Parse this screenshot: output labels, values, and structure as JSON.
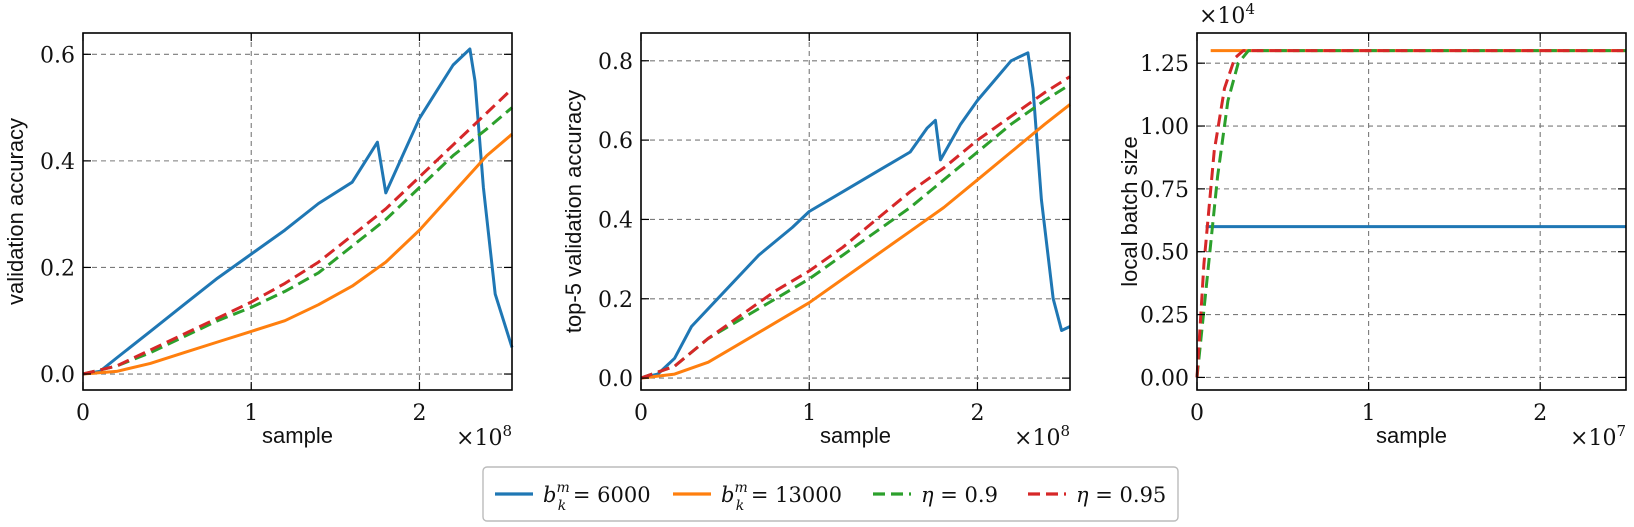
{
  "chart_data": [
    {
      "type": "line",
      "xlabel": "sample",
      "ylabel": "validation accuracy",
      "x_multiplier": "×10^8",
      "xlim": [
        0,
        2.55
      ],
      "ylim": [
        -0.03,
        0.64
      ],
      "xticks": [
        0,
        1,
        2
      ],
      "yticks": [
        0.0,
        0.2,
        0.4,
        0.6
      ],
      "ytick_labels": [
        "0.0",
        "0.2",
        "0.4",
        "0.6"
      ],
      "grid": true,
      "series": [
        {
          "name": "b_k^m = 6000",
          "color": "#1f77b4",
          "style": "solid",
          "x": [
            0,
            0.1,
            0.2,
            0.4,
            0.6,
            0.8,
            1.0,
            1.2,
            1.4,
            1.6,
            1.7,
            1.75,
            1.8,
            1.9,
            2.0,
            2.1,
            2.2,
            2.3,
            2.33,
            2.38,
            2.45,
            2.55
          ],
          "y": [
            0,
            0.005,
            0.03,
            0.08,
            0.13,
            0.18,
            0.225,
            0.27,
            0.32,
            0.36,
            0.41,
            0.435,
            0.34,
            0.41,
            0.48,
            0.53,
            0.58,
            0.61,
            0.55,
            0.35,
            0.15,
            0.05
          ]
        },
        {
          "name": "b_k^m = 13000",
          "color": "#ff7f0e",
          "style": "solid",
          "x": [
            0,
            0.2,
            0.4,
            0.6,
            0.8,
            1.0,
            1.2,
            1.4,
            1.6,
            1.8,
            2.0,
            2.2,
            2.4,
            2.55
          ],
          "y": [
            0,
            0.005,
            0.02,
            0.04,
            0.06,
            0.08,
            0.1,
            0.13,
            0.165,
            0.21,
            0.27,
            0.34,
            0.41,
            0.45
          ]
        },
        {
          "name": "η = 0.9",
          "color": "#2ca02c",
          "style": "dashed",
          "x": [
            0,
            0.2,
            0.4,
            0.6,
            0.8,
            1.0,
            1.2,
            1.4,
            1.6,
            1.8,
            2.0,
            2.2,
            2.4,
            2.55
          ],
          "y": [
            0,
            0.015,
            0.04,
            0.07,
            0.1,
            0.125,
            0.155,
            0.19,
            0.24,
            0.29,
            0.35,
            0.41,
            0.46,
            0.5
          ]
        },
        {
          "name": "η = 0.95",
          "color": "#d62728",
          "style": "dashed",
          "x": [
            0,
            0.2,
            0.4,
            0.6,
            0.8,
            1.0,
            1.2,
            1.4,
            1.6,
            1.8,
            2.0,
            2.2,
            2.4,
            2.55
          ],
          "y": [
            0,
            0.015,
            0.045,
            0.075,
            0.105,
            0.135,
            0.17,
            0.21,
            0.26,
            0.31,
            0.37,
            0.43,
            0.49,
            0.535
          ]
        }
      ]
    },
    {
      "type": "line",
      "xlabel": "sample",
      "ylabel": "top-5 validation accuracy",
      "x_multiplier": "×10^8",
      "xlim": [
        0,
        2.55
      ],
      "ylim": [
        -0.03,
        0.87
      ],
      "xticks": [
        0,
        1,
        2
      ],
      "yticks": [
        0.0,
        0.2,
        0.4,
        0.6,
        0.8
      ],
      "ytick_labels": [
        "0.0",
        "0.2",
        "0.4",
        "0.6",
        "0.8"
      ],
      "grid": true,
      "series": [
        {
          "name": "b_k^m = 6000",
          "color": "#1f77b4",
          "style": "solid",
          "x": [
            0,
            0.1,
            0.2,
            0.3,
            0.5,
            0.7,
            0.9,
            1.0,
            1.2,
            1.4,
            1.6,
            1.7,
            1.75,
            1.78,
            1.9,
            2.0,
            2.1,
            2.2,
            2.3,
            2.33,
            2.38,
            2.45,
            2.5,
            2.55
          ],
          "y": [
            0,
            0.01,
            0.05,
            0.13,
            0.22,
            0.31,
            0.38,
            0.42,
            0.47,
            0.52,
            0.57,
            0.63,
            0.65,
            0.55,
            0.64,
            0.7,
            0.75,
            0.8,
            0.82,
            0.73,
            0.45,
            0.2,
            0.12,
            0.13
          ]
        },
        {
          "name": "b_k^m = 13000",
          "color": "#ff7f0e",
          "style": "solid",
          "x": [
            0,
            0.2,
            0.4,
            0.6,
            0.8,
            1.0,
            1.2,
            1.4,
            1.6,
            1.8,
            2.0,
            2.2,
            2.4,
            2.55
          ],
          "y": [
            0,
            0.01,
            0.04,
            0.09,
            0.14,
            0.19,
            0.25,
            0.31,
            0.37,
            0.43,
            0.5,
            0.57,
            0.64,
            0.69
          ]
        },
        {
          "name": "η = 0.9",
          "color": "#2ca02c",
          "style": "dashed",
          "x": [
            0,
            0.2,
            0.4,
            0.6,
            0.8,
            1.0,
            1.2,
            1.4,
            1.6,
            1.8,
            2.0,
            2.2,
            2.4,
            2.55
          ],
          "y": [
            0,
            0.03,
            0.1,
            0.15,
            0.2,
            0.25,
            0.31,
            0.37,
            0.43,
            0.5,
            0.57,
            0.64,
            0.7,
            0.74
          ]
        },
        {
          "name": "η = 0.95",
          "color": "#d62728",
          "style": "dashed",
          "x": [
            0,
            0.2,
            0.4,
            0.6,
            0.8,
            1.0,
            1.2,
            1.4,
            1.6,
            1.8,
            2.0,
            2.2,
            2.4,
            2.55
          ],
          "y": [
            0,
            0.03,
            0.1,
            0.16,
            0.22,
            0.27,
            0.33,
            0.4,
            0.47,
            0.53,
            0.6,
            0.66,
            0.72,
            0.76
          ]
        }
      ]
    },
    {
      "type": "line",
      "xlabel": "sample",
      "ylabel": "local batch size",
      "x_multiplier": "×10^7",
      "y_multiplier": "×10^4",
      "xlim": [
        0,
        2.5
      ],
      "ylim": [
        -0.05,
        1.37
      ],
      "xticks": [
        0,
        1,
        2
      ],
      "yticks": [
        0.0,
        0.25,
        0.5,
        0.75,
        1.0,
        1.25
      ],
      "ytick_labels": [
        "0.00",
        "0.25",
        "0.50",
        "0.75",
        "1.00",
        "1.25"
      ],
      "grid": true,
      "series": [
        {
          "name": "b_k^m = 6000",
          "color": "#1f77b4",
          "style": "solid",
          "x": [
            0.05,
            2.5
          ],
          "y": [
            0.6,
            0.6
          ]
        },
        {
          "name": "b_k^m = 13000",
          "color": "#ff7f0e",
          "style": "solid",
          "x": [
            0.08,
            2.5
          ],
          "y": [
            1.3,
            1.3
          ]
        },
        {
          "name": "η = 0.9",
          "color": "#2ca02c",
          "style": "dashed",
          "x": [
            0,
            0.06,
            0.12,
            0.18,
            0.24,
            0.3,
            2.5
          ],
          "y": [
            0.0,
            0.4,
            0.8,
            1.1,
            1.25,
            1.3,
            1.3
          ]
        },
        {
          "name": "η = 0.95",
          "color": "#d62728",
          "style": "dashed",
          "x": [
            0,
            0.04,
            0.1,
            0.16,
            0.22,
            0.27,
            2.5
          ],
          "y": [
            0.0,
            0.45,
            0.9,
            1.15,
            1.27,
            1.3,
            1.3
          ]
        }
      ]
    }
  ],
  "legend": {
    "placement": "bottom-center",
    "items": [
      {
        "label": "b_k^m = 6000",
        "base": "b",
        "sub": "k",
        "sup": "m",
        "rest": " = 6000",
        "color": "#1f77b4",
        "style": "solid"
      },
      {
        "label": "b_k^m = 13000",
        "base": "b",
        "sub": "k",
        "sup": "m",
        "rest": " = 13000",
        "color": "#ff7f0e",
        "style": "solid"
      },
      {
        "label": "η = 0.9",
        "base": "η",
        "sub": "",
        "sup": "",
        "rest": " = 0.9",
        "color": "#2ca02c",
        "style": "dashed"
      },
      {
        "label": "η = 0.95",
        "base": "η",
        "sub": "",
        "sup": "",
        "rest": " = 0.95",
        "color": "#d62728",
        "style": "dashed"
      }
    ]
  }
}
